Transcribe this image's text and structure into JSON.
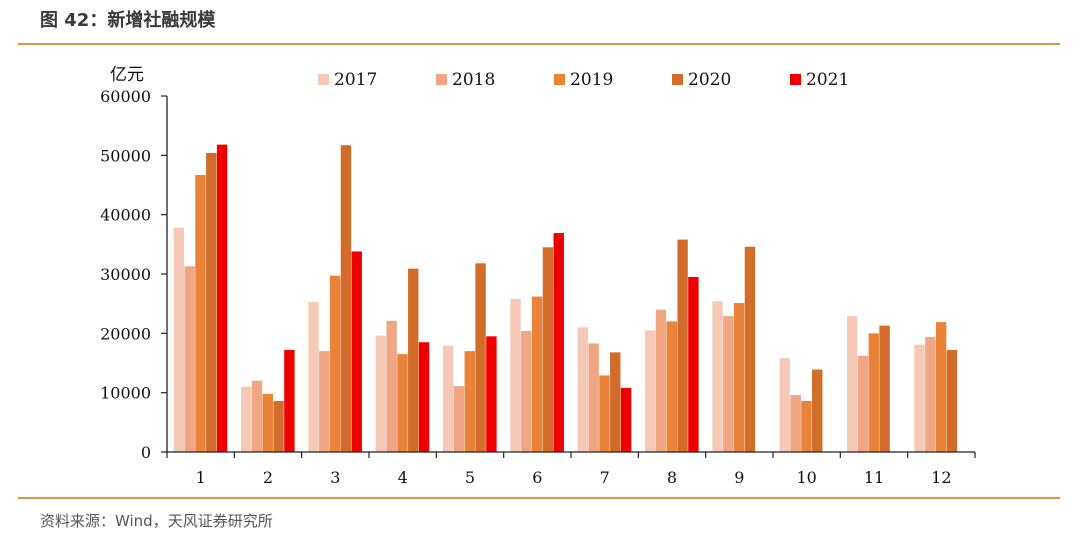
{
  "figure": {
    "title": "图 42：新增社融规模",
    "source": "资料来源：Wind，天风证券研究所"
  },
  "chart_data": {
    "type": "bar",
    "title": "",
    "ylabel": "亿元",
    "xlabel": "",
    "ylim": [
      0,
      60000
    ],
    "yticks": [
      0,
      10000,
      20000,
      30000,
      40000,
      50000,
      60000
    ],
    "categories": [
      "1",
      "2",
      "3",
      "4",
      "5",
      "6",
      "7",
      "8",
      "9",
      "10",
      "11",
      "12"
    ],
    "grid": false,
    "legend_position": "top",
    "series": [
      {
        "name": "2017",
        "color": "#f6c9b6",
        "values": [
          37800,
          11000,
          25300,
          19600,
          17900,
          25800,
          21000,
          20500,
          25400,
          15800,
          22900,
          18100
        ]
      },
      {
        "name": "2018",
        "color": "#f0a583",
        "values": [
          31300,
          12000,
          17000,
          22100,
          11100,
          20400,
          18300,
          24000,
          22900,
          9600,
          16200,
          19400
        ]
      },
      {
        "name": "2019",
        "color": "#ea8238",
        "values": [
          46700,
          9800,
          29700,
          16500,
          17000,
          26200,
          12900,
          22000,
          25100,
          8600,
          20000,
          21900
        ]
      },
      {
        "name": "2020",
        "color": "#d26c2a",
        "values": [
          50400,
          8600,
          51700,
          30900,
          31800,
          34500,
          16800,
          35800,
          34600,
          13900,
          21300,
          17200
        ]
      },
      {
        "name": "2021",
        "color": "#ee0000",
        "values": [
          51800,
          17200,
          33800,
          18500,
          19500,
          36900,
          10800,
          29500,
          null,
          null,
          null,
          null
        ]
      }
    ]
  }
}
